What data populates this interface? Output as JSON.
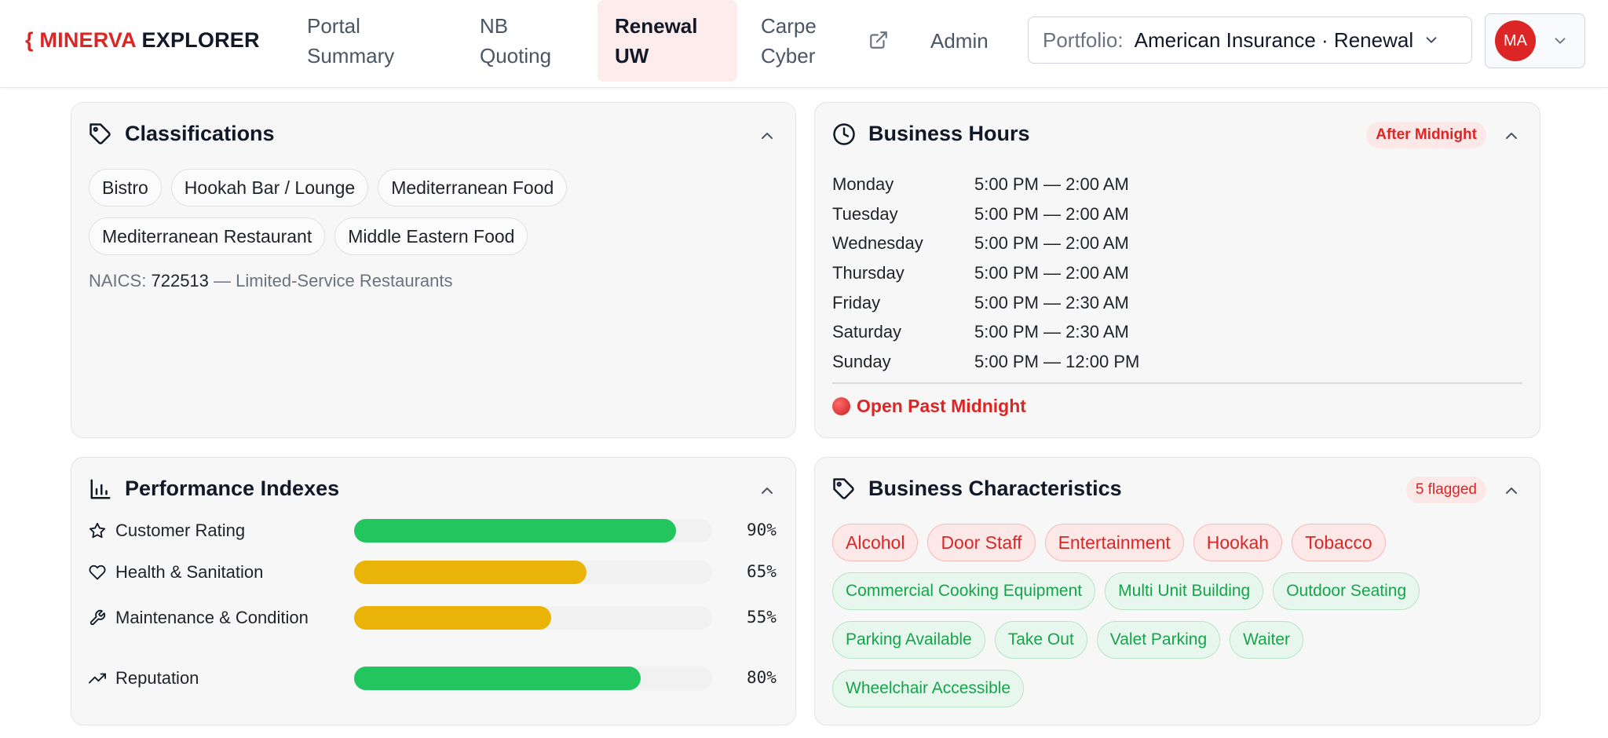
{
  "nav": {
    "brand_brace": "{",
    "brand_part1": "MINERVA",
    "brand_part2": "EXPLORER",
    "tabs": [
      {
        "line1": "Portal",
        "line2": "Summary"
      },
      {
        "line1": "NB",
        "line2": "Quoting"
      },
      {
        "line1": "Renewal",
        "line2": "UW"
      },
      {
        "line1": "Carpe",
        "line2": "Cyber"
      },
      {
        "line1": "Admin",
        "line2": ""
      }
    ],
    "active_tab": "Renewal UW",
    "portfolio_label": "Portfolio:",
    "portfolio_value": "American Insurance · Renewal",
    "user_initials": "MA"
  },
  "classifications": {
    "title": "Classifications",
    "chips": [
      "Bistro",
      "Hookah Bar / Lounge",
      "Mediterranean Food",
      "Mediterranean Restaurant",
      "Middle Eastern Food"
    ],
    "naics_label": "NAICS:",
    "naics_code": "722513",
    "naics_desc": "— Limited-Service Restaurants"
  },
  "business_hours": {
    "title": "Business Hours",
    "badge": "After Midnight",
    "rows": [
      {
        "day": "Monday",
        "hours": "5:00 PM — 2:00 AM"
      },
      {
        "day": "Tuesday",
        "hours": "5:00 PM — 2:00 AM"
      },
      {
        "day": "Wednesday",
        "hours": "5:00 PM — 2:00 AM"
      },
      {
        "day": "Thursday",
        "hours": "5:00 PM — 2:00 AM"
      },
      {
        "day": "Friday",
        "hours": "5:00 PM — 2:30 AM"
      },
      {
        "day": "Saturday",
        "hours": "5:00 PM — 2:30 AM"
      },
      {
        "day": "Sunday",
        "hours": "5:00 PM — 12:00 PM"
      }
    ],
    "footer": "Open Past Midnight"
  },
  "performance": {
    "title": "Performance Indexes",
    "items": [
      {
        "label": "Customer Rating",
        "value_text": "90%",
        "fraction": 0.9,
        "color": "#22c55e",
        "icon": "star-icon"
      },
      {
        "label": "Health & Sanitation",
        "value_text": "65%",
        "fraction": 0.65,
        "color": "#eab308",
        "icon": "heart-icon"
      },
      {
        "label": "Maintenance & Condition",
        "value_text": "55%",
        "fraction": 0.55,
        "color": "#eab308",
        "icon": "wrench-icon"
      },
      {
        "label": "Reputation",
        "value_text": "80%",
        "fraction": 0.8,
        "color": "#22c55e",
        "icon": "trending-up-icon"
      }
    ]
  },
  "characteristics": {
    "title": "Business Characteristics",
    "badge": "5 flagged",
    "flagged": [
      "Alcohol",
      "Door Staff",
      "Entertainment",
      "Hookah",
      "Tobacco"
    ],
    "other": [
      "Commercial Cooking Equipment",
      "Multi Unit Building",
      "Outdoor Seating",
      "Parking Available",
      "Take Out",
      "Valet Parking",
      "Waiter",
      "Wheelchair Accessible"
    ]
  },
  "colors": {
    "brand_red": "#dc2626",
    "active_tab_bg": "#fdecec",
    "good": "#22c55e",
    "warn": "#eab308"
  }
}
